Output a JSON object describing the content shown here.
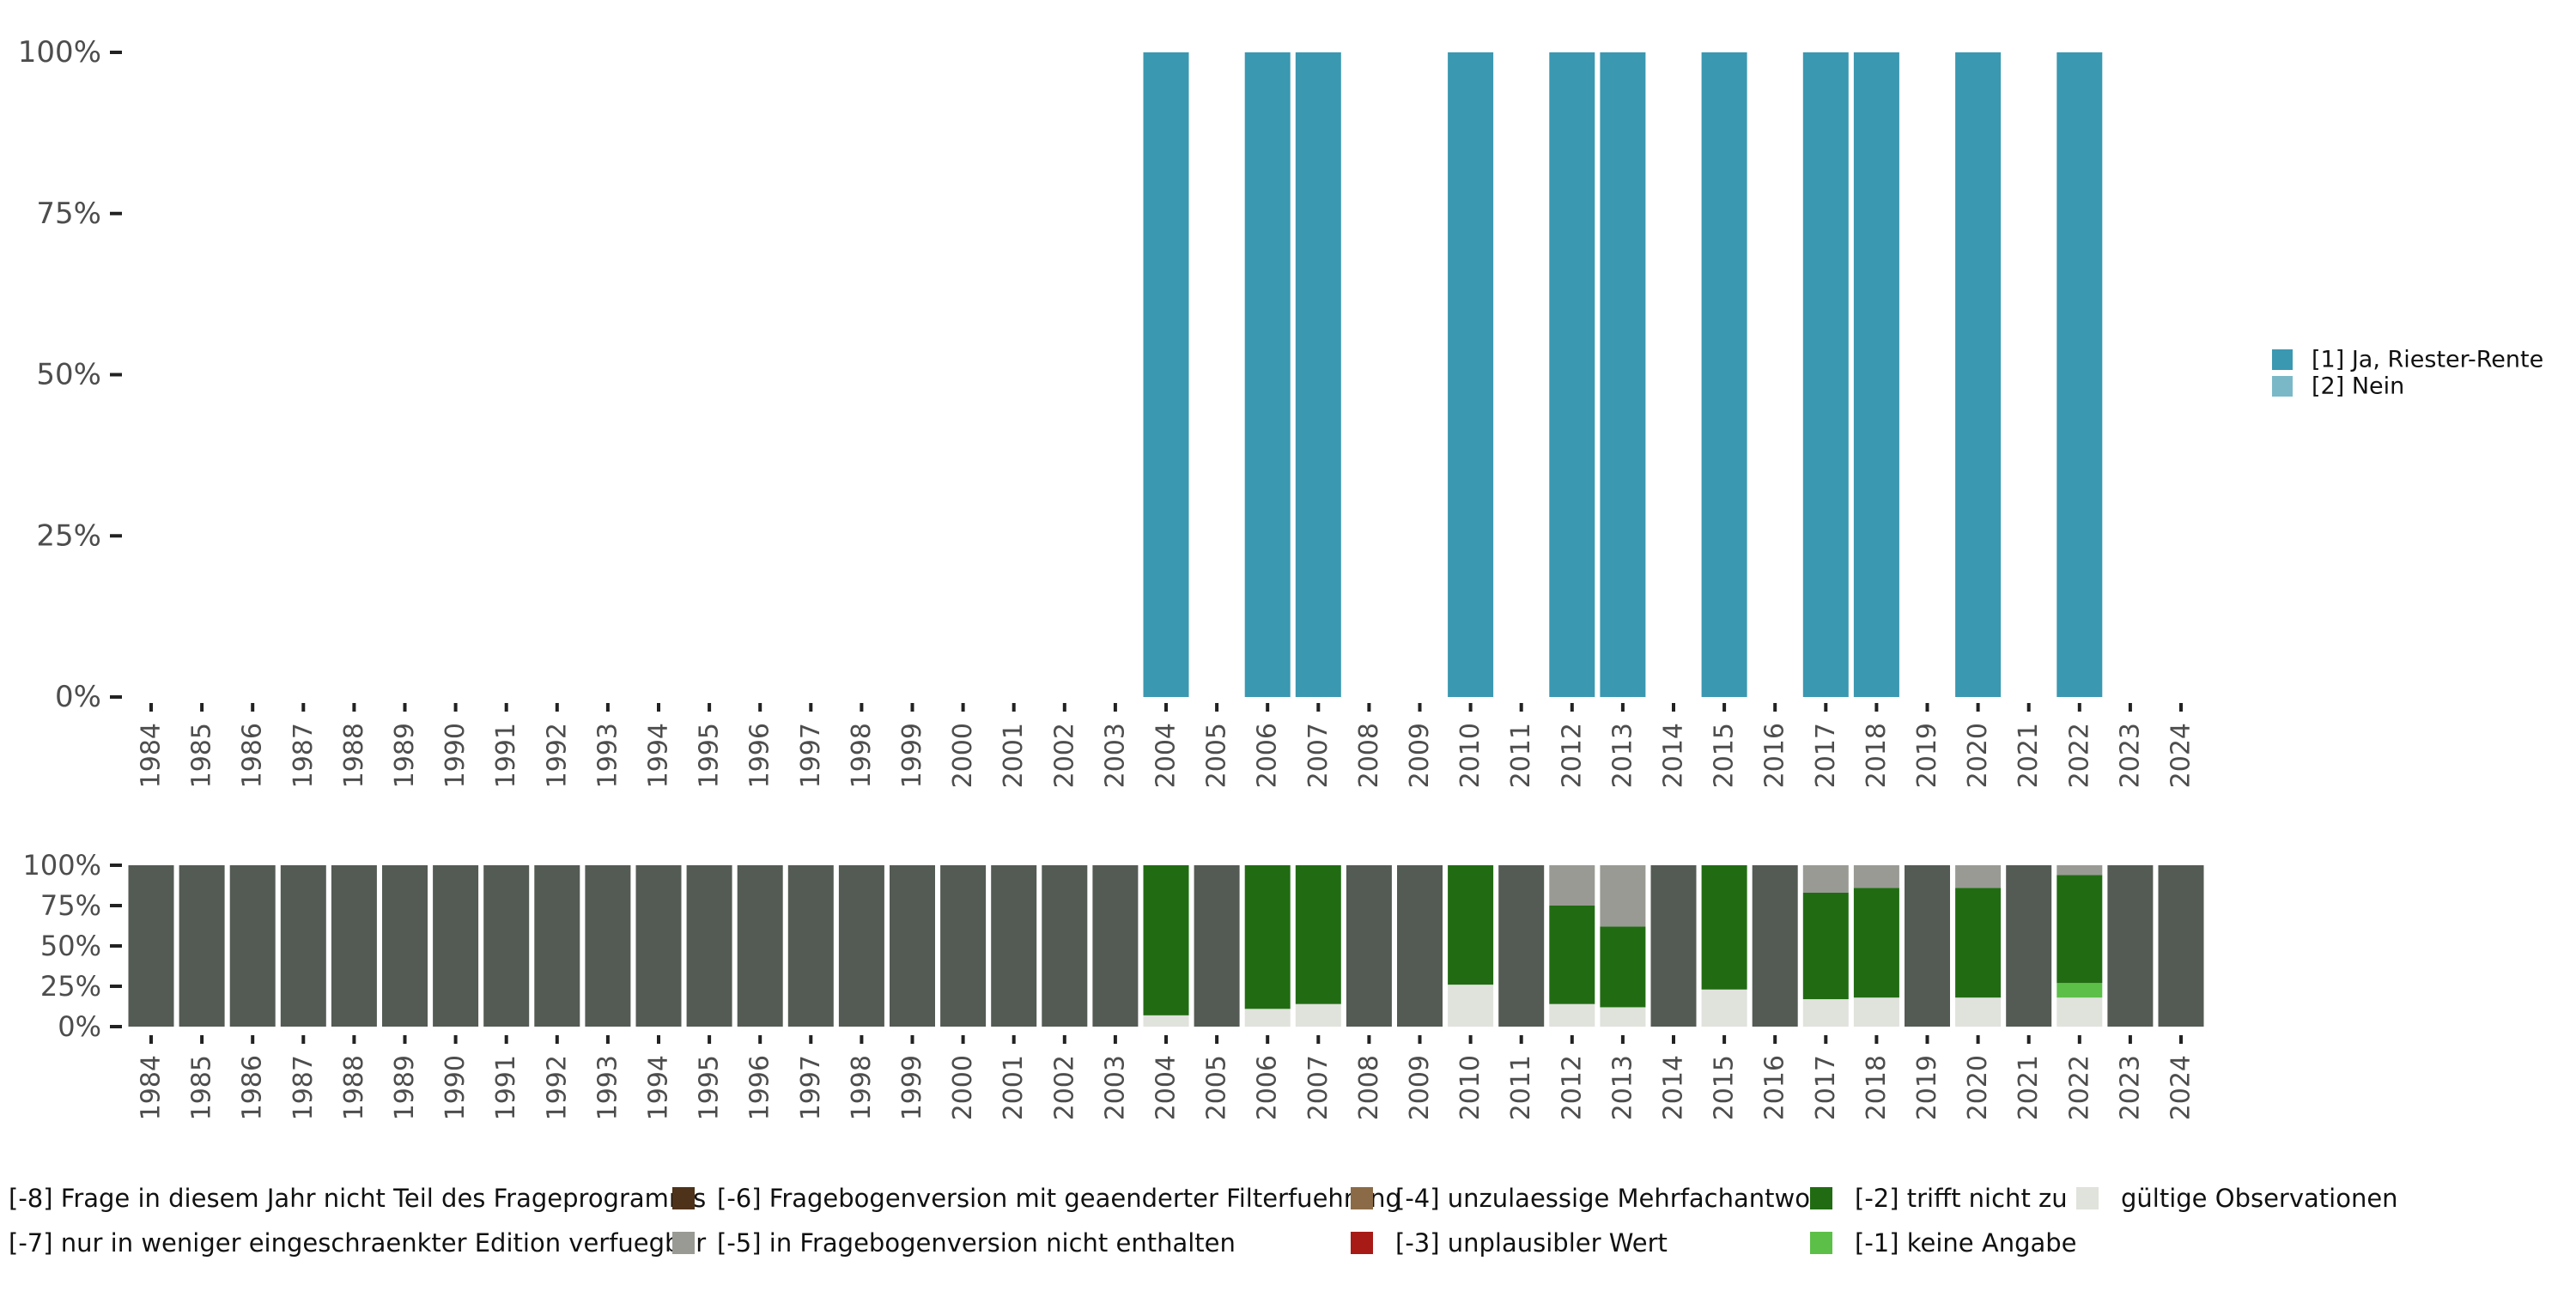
{
  "chart_data": [
    {
      "type": "bar",
      "stacked": true,
      "categories": [
        "1984",
        "1985",
        "1986",
        "1987",
        "1988",
        "1989",
        "1990",
        "1991",
        "1992",
        "1993",
        "1994",
        "1995",
        "1996",
        "1997",
        "1998",
        "1999",
        "2000",
        "2001",
        "2002",
        "2003",
        "2004",
        "2005",
        "2006",
        "2007",
        "2008",
        "2009",
        "2010",
        "2011",
        "2012",
        "2013",
        "2014",
        "2015",
        "2016",
        "2017",
        "2018",
        "2019",
        "2020",
        "2021",
        "2022",
        "2023",
        "2024"
      ],
      "ylim": [
        0,
        100
      ],
      "yticks": [
        "0%",
        "25%",
        "50%",
        "75%",
        "100%"
      ],
      "legend_position": "right",
      "series": [
        {
          "name": "[1] Ja, Riester-Rente",
          "color": "#3a98b1",
          "values": [
            null,
            null,
            null,
            null,
            null,
            null,
            null,
            null,
            null,
            null,
            null,
            null,
            null,
            null,
            null,
            null,
            null,
            null,
            null,
            null,
            100,
            null,
            100,
            100,
            null,
            null,
            100,
            null,
            100,
            100,
            null,
            100,
            null,
            100,
            100,
            null,
            100,
            null,
            100,
            null,
            null
          ]
        },
        {
          "name": "[2] Nein",
          "color": "#7ab8c8",
          "values": [
            null,
            null,
            null,
            null,
            null,
            null,
            null,
            null,
            null,
            null,
            null,
            null,
            null,
            null,
            null,
            null,
            null,
            null,
            null,
            null,
            0,
            null,
            0,
            0,
            null,
            null,
            0,
            null,
            0,
            0,
            null,
            0,
            null,
            0,
            0,
            null,
            0,
            null,
            0,
            null,
            null
          ]
        }
      ]
    },
    {
      "type": "bar",
      "stacked": true,
      "categories": [
        "1984",
        "1985",
        "1986",
        "1987",
        "1988",
        "1989",
        "1990",
        "1991",
        "1992",
        "1993",
        "1994",
        "1995",
        "1996",
        "1997",
        "1998",
        "1999",
        "2000",
        "2001",
        "2002",
        "2003",
        "2004",
        "2005",
        "2006",
        "2007",
        "2008",
        "2009",
        "2010",
        "2011",
        "2012",
        "2013",
        "2014",
        "2015",
        "2016",
        "2017",
        "2018",
        "2019",
        "2020",
        "2021",
        "2022",
        "2023",
        "2024"
      ],
      "ylim": [
        0,
        100
      ],
      "yticks": [
        "0%",
        "25%",
        "50%",
        "75%",
        "100%"
      ],
      "legend_position": "bottom",
      "series": [
        {
          "name": "gültige Observationen",
          "color": "#e0e2dc",
          "values": [
            0,
            0,
            0,
            0,
            0,
            0,
            0,
            0,
            0,
            0,
            0,
            0,
            0,
            0,
            0,
            0,
            0,
            0,
            0,
            0,
            7,
            0,
            11,
            14,
            0,
            0,
            26,
            0,
            14,
            12,
            0,
            23,
            0,
            17,
            18,
            0,
            18,
            0,
            18,
            0,
            0
          ]
        },
        {
          "name": "[-1] keine Angabe",
          "color": "#5cbf48",
          "values": [
            0,
            0,
            0,
            0,
            0,
            0,
            0,
            0,
            0,
            0,
            0,
            0,
            0,
            0,
            0,
            0,
            0,
            0,
            0,
            0,
            0,
            0,
            0,
            0,
            0,
            0,
            0,
            0,
            0,
            0,
            0,
            0,
            0,
            0,
            0,
            0,
            0,
            0,
            9,
            0,
            0
          ]
        },
        {
          "name": "[-2] trifft nicht zu",
          "color": "#216c13",
          "values": [
            0,
            0,
            0,
            0,
            0,
            0,
            0,
            0,
            0,
            0,
            0,
            0,
            0,
            0,
            0,
            0,
            0,
            0,
            0,
            0,
            93,
            0,
            89,
            86,
            0,
            0,
            74,
            0,
            61,
            50,
            0,
            77,
            0,
            66,
            68,
            0,
            68,
            0,
            67,
            0,
            0
          ]
        },
        {
          "name": "[-3] unplausibler Wert",
          "color": "#a71a16",
          "values": [
            0,
            0,
            0,
            0,
            0,
            0,
            0,
            0,
            0,
            0,
            0,
            0,
            0,
            0,
            0,
            0,
            0,
            0,
            0,
            0,
            0,
            0,
            0,
            0,
            0,
            0,
            0,
            0,
            0,
            0,
            0,
            0,
            0,
            0,
            0,
            0,
            0,
            0,
            0,
            0,
            0
          ]
        },
        {
          "name": "[-4] unzulaessige Mehrfachantwort",
          "color": "#8b6b47",
          "values": [
            0,
            0,
            0,
            0,
            0,
            0,
            0,
            0,
            0,
            0,
            0,
            0,
            0,
            0,
            0,
            0,
            0,
            0,
            0,
            0,
            0,
            0,
            0,
            0,
            0,
            0,
            0,
            0,
            0,
            0,
            0,
            0,
            0,
            0,
            0,
            0,
            0,
            0,
            0,
            0,
            0
          ]
        },
        {
          "name": "[-5] in Fragebogenversion nicht enthalten",
          "color": "#999a94",
          "values": [
            0,
            0,
            0,
            0,
            0,
            0,
            0,
            0,
            0,
            0,
            0,
            0,
            0,
            0,
            0,
            0,
            0,
            0,
            0,
            0,
            0,
            0,
            0,
            0,
            0,
            0,
            0,
            0,
            25,
            38,
            0,
            0,
            0,
            17,
            14,
            0,
            14,
            0,
            6,
            0,
            0
          ]
        },
        {
          "name": "[-6] Fragebogenversion mit geaenderter Filterfuehrung",
          "color": "#4f321a",
          "values": [
            0,
            0,
            0,
            0,
            0,
            0,
            0,
            0,
            0,
            0,
            0,
            0,
            0,
            0,
            0,
            0,
            0,
            0,
            0,
            0,
            0,
            0,
            0,
            0,
            0,
            0,
            0,
            0,
            0,
            0,
            0,
            0,
            0,
            0,
            0,
            0,
            0,
            0,
            0,
            0,
            0
          ]
        },
        {
          "name": "[-7] nur in weniger eingeschraenkter Edition verfuegbar",
          "color": "#a3a39c",
          "values": [
            0,
            0,
            0,
            0,
            0,
            0,
            0,
            0,
            0,
            0,
            0,
            0,
            0,
            0,
            0,
            0,
            0,
            0,
            0,
            0,
            0,
            0,
            0,
            0,
            0,
            0,
            0,
            0,
            0,
            0,
            0,
            0,
            0,
            0,
            0,
            0,
            0,
            0,
            0,
            0,
            0
          ]
        },
        {
          "name": "[-8] Frage in diesem Jahr nicht Teil des Frageprogramms",
          "color": "#545a54",
          "values": [
            100,
            100,
            100,
            100,
            100,
            100,
            100,
            100,
            100,
            100,
            100,
            100,
            100,
            100,
            100,
            100,
            100,
            100,
            100,
            100,
            0,
            100,
            0,
            0,
            100,
            100,
            0,
            100,
            0,
            0,
            100,
            0,
            100,
            0,
            0,
            100,
            0,
            100,
            0,
            100,
            100
          ]
        }
      ]
    }
  ]
}
